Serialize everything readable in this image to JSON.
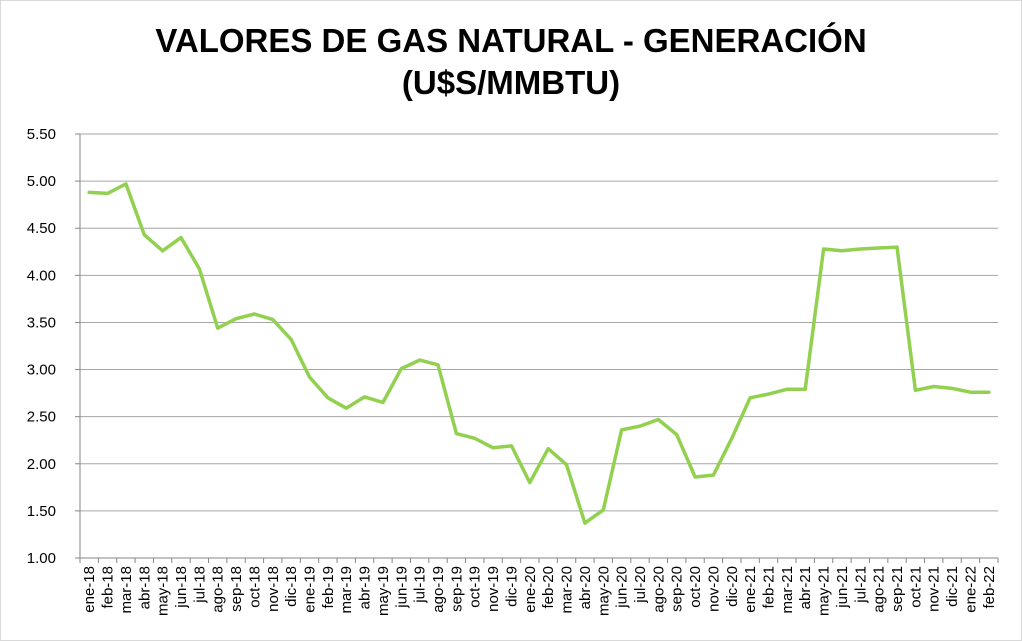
{
  "chart_data": {
    "type": "line",
    "title_lines": [
      "VALORES DE GAS NATURAL - GENERACIÓN",
      "(U$S/MMBTU)"
    ],
    "xlabel": "",
    "ylabel": "",
    "ylim": [
      1.0,
      5.5
    ],
    "yticks": [
      "1.00",
      "1.50",
      "2.00",
      "2.50",
      "3.00",
      "3.50",
      "4.00",
      "4.50",
      "5.00",
      "5.50"
    ],
    "grid": true,
    "legend": "none",
    "series_color": "#92d050",
    "grid_color": "#a6a6a6",
    "categories": [
      "ene-18",
      "feb-18",
      "mar-18",
      "abr-18",
      "may-18",
      "jun-18",
      "jul-18",
      "ago-18",
      "sep-18",
      "oct-18",
      "nov-18",
      "dic-18",
      "ene-19",
      "feb-19",
      "mar-19",
      "abr-19",
      "may-19",
      "jun-19",
      "jul-19",
      "ago-19",
      "sep-19",
      "oct-19",
      "nov-19",
      "dic-19",
      "ene-20",
      "feb-20",
      "mar-20",
      "abr-20",
      "may-20",
      "jun-20",
      "jul-20",
      "ago-20",
      "sep-20",
      "oct-20",
      "nov-20",
      "dic-20",
      "ene-21",
      "feb-21",
      "mar-21",
      "abr-21",
      "may-21",
      "jun-21",
      "jul-21",
      "ago-21",
      "sep-21",
      "oct-21",
      "nov-21",
      "dic-21",
      "ene-22",
      "feb-22"
    ],
    "series": [
      {
        "values": [
          4.88,
          4.87,
          4.97,
          4.43,
          4.26,
          4.4,
          4.07,
          3.44,
          3.54,
          3.59,
          3.53,
          3.32,
          2.92,
          2.7,
          2.59,
          2.71,
          2.65,
          3.01,
          3.1,
          3.05,
          2.32,
          2.27,
          2.17,
          2.19,
          1.8,
          2.16,
          1.99,
          1.37,
          1.51,
          2.36,
          2.4,
          2.47,
          2.31,
          1.86,
          1.88,
          2.27,
          2.7,
          2.74,
          2.79,
          2.79,
          4.28,
          4.26,
          4.28,
          4.29,
          4.3,
          2.78,
          2.82,
          2.8,
          2.76,
          2.76
        ]
      }
    ]
  }
}
